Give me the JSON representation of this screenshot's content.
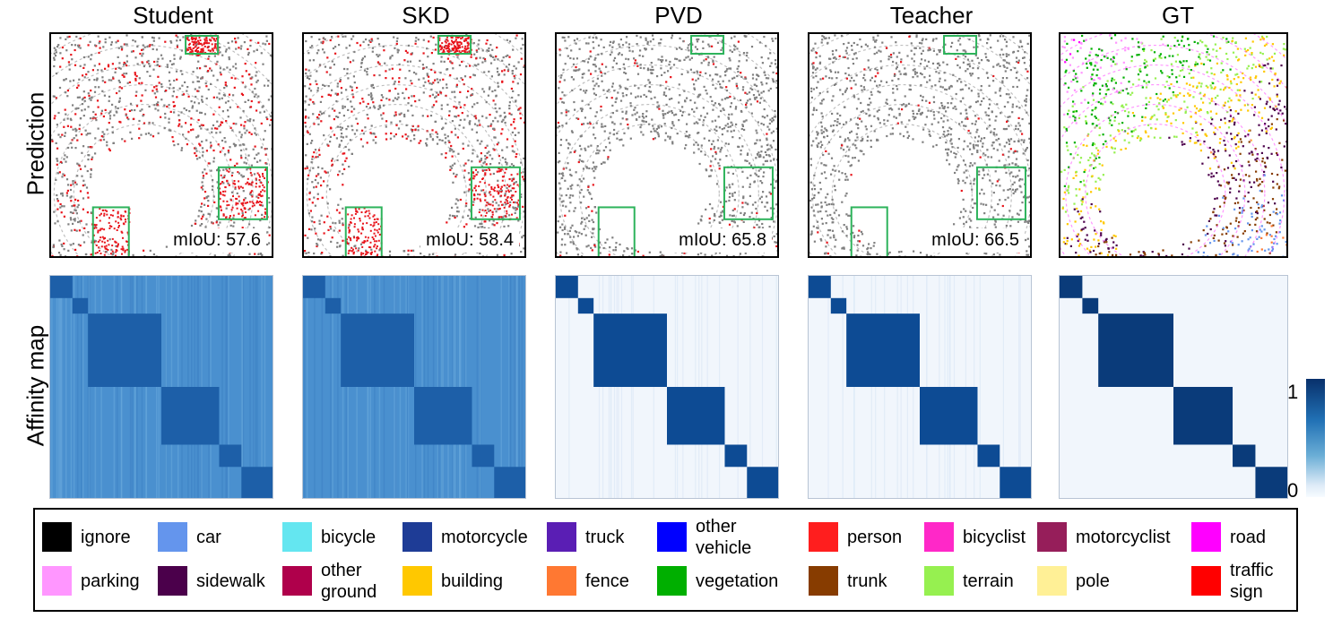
{
  "columns": [
    {
      "title": "Student",
      "miou": "mIoU: 57.6",
      "affinity_style": "student"
    },
    {
      "title": "SKD",
      "miou": "mIoU: 58.4",
      "affinity_style": "student"
    },
    {
      "title": "PVD",
      "miou": "mIoU: 65.8",
      "affinity_style": "distilled"
    },
    {
      "title": "Teacher",
      "miou": "mIoU: 66.5",
      "affinity_style": "distilled"
    },
    {
      "title": "GT",
      "miou": null,
      "affinity_style": "ground-truth"
    }
  ],
  "row_labels": {
    "prediction": "Prediction",
    "affinity": "Affinity map"
  },
  "colorbar": {
    "max_label": "1",
    "min_label": "0"
  },
  "colors": {
    "background_point": "#808080",
    "error_point": "#e8141b",
    "highlight_box": "#2db35b"
  },
  "legend": [
    {
      "label": "ignore",
      "color": "#000000"
    },
    {
      "label": "car",
      "color": "#6495ed"
    },
    {
      "label": "bicycle",
      "color": "#64e6f0"
    },
    {
      "label": "motorcycle",
      "color": "#1e3c96"
    },
    {
      "label": "truck",
      "color": "#5a1eb4"
    },
    {
      "label": "other vehicle",
      "color": "#0000ff"
    },
    {
      "label": "person",
      "color": "#ff1e1e"
    },
    {
      "label": "bicyclist",
      "color": "#ff28c8"
    },
    {
      "label": "motorcyclist",
      "color": "#961e5a"
    },
    {
      "label": "road",
      "color": "#ff00ff"
    },
    {
      "label": "parking",
      "color": "#ff96ff"
    },
    {
      "label": "sidewalk",
      "color": "#4b004b"
    },
    {
      "label": "other ground",
      "color": "#af004b"
    },
    {
      "label": "building",
      "color": "#ffc800"
    },
    {
      "label": "fence",
      "color": "#ff7832"
    },
    {
      "label": "vegetation",
      "color": "#00af00"
    },
    {
      "label": "trunk",
      "color": "#873c00"
    },
    {
      "label": "terrain",
      "color": "#96f050"
    },
    {
      "label": "pole",
      "color": "#fff096"
    },
    {
      "label": "traffic sign",
      "color": "#ff0000"
    }
  ]
}
